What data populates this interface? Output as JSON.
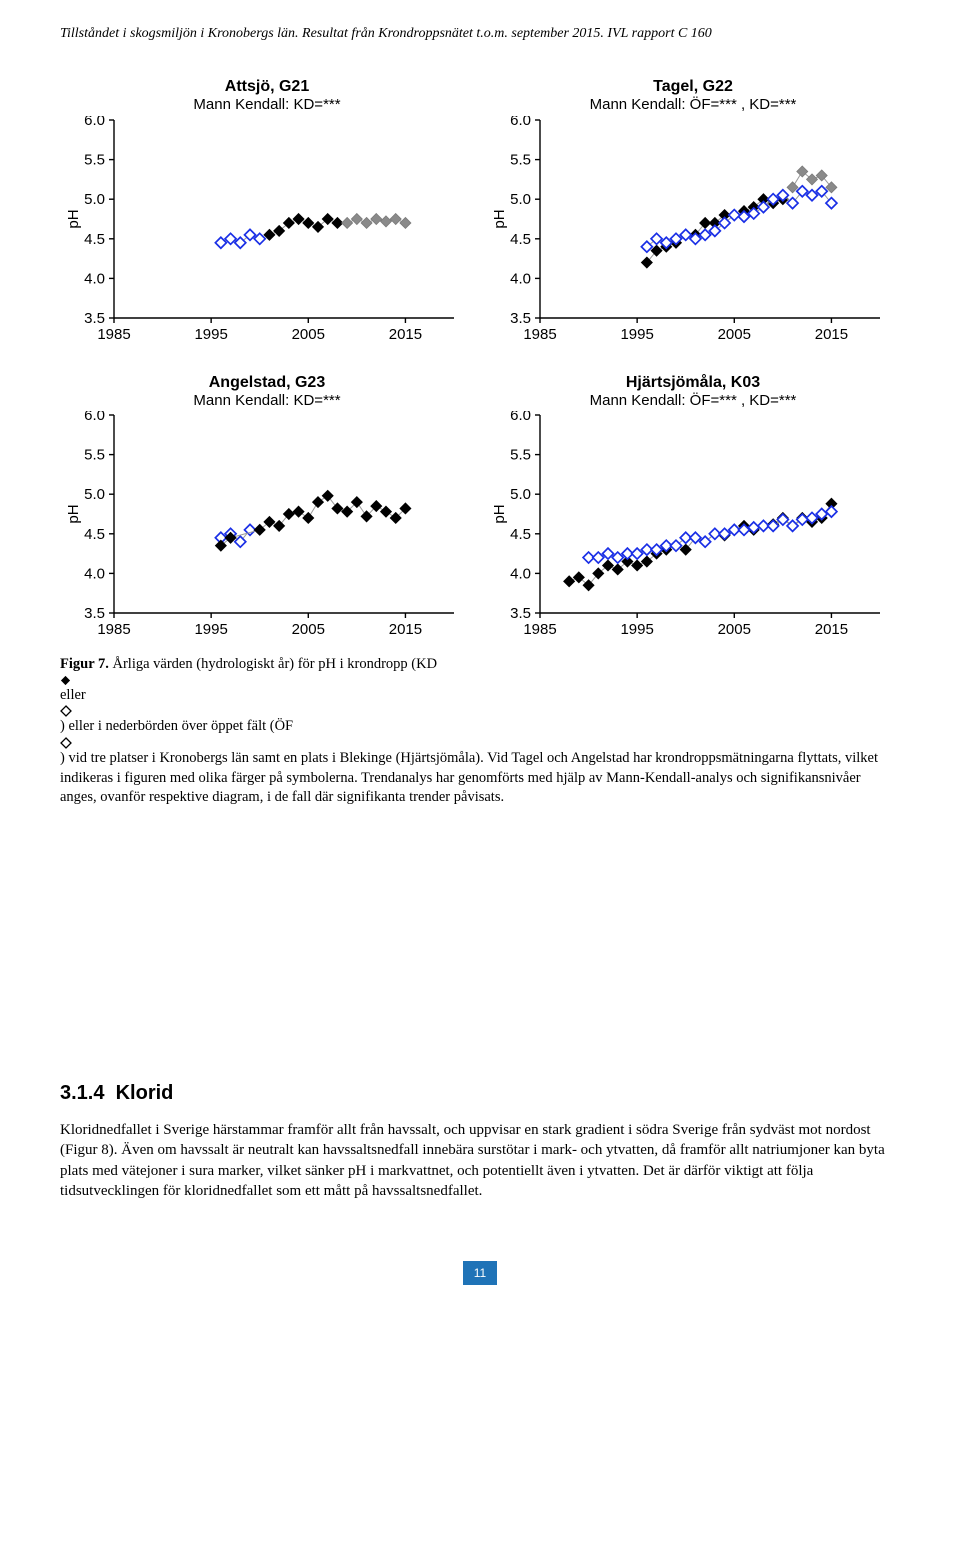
{
  "header": {
    "text": "Tillståndet i skogsmiljön i Kronobergs län. Resultat från Krondroppsnätet t.o.m. september 2015. IVL rapport C 160"
  },
  "charts": [
    {
      "title_main": "Attsjö, G21",
      "title_sub": "Mann Kendall: KD=***",
      "ylabel": "pH",
      "xlim": [
        1985,
        2020
      ],
      "ylim": [
        3.5,
        6.0
      ],
      "xticks": [
        1985,
        1995,
        2005,
        2015
      ],
      "yticks": [
        3.5,
        4.0,
        4.5,
        5.0,
        5.5,
        6.0
      ],
      "series": [
        {
          "shape": "diamond",
          "style": "open",
          "stroke": "#1a2fe6",
          "fill": "none",
          "points": [
            [
              1996,
              4.45
            ],
            [
              1997,
              4.5
            ],
            [
              1998,
              4.45
            ],
            [
              1999,
              4.55
            ],
            [
              2000,
              4.5
            ]
          ]
        },
        {
          "shape": "diamond",
          "style": "solid",
          "stroke": "#000000",
          "fill": "#000000",
          "points": [
            [
              2001,
              4.55
            ],
            [
              2002,
              4.6
            ],
            [
              2003,
              4.7
            ],
            [
              2004,
              4.75
            ],
            [
              2005,
              4.7
            ],
            [
              2006,
              4.65
            ],
            [
              2007,
              4.75
            ],
            [
              2008,
              4.7
            ]
          ]
        },
        {
          "shape": "diamond",
          "style": "solid",
          "stroke": "#7a7a7a",
          "fill": "#8a8a8a",
          "points": [
            [
              2009,
              4.7
            ],
            [
              2010,
              4.75
            ],
            [
              2011,
              4.7
            ],
            [
              2012,
              4.75
            ],
            [
              2013,
              4.72
            ],
            [
              2014,
              4.75
            ],
            [
              2015,
              4.7
            ]
          ]
        }
      ],
      "line_color": "#9a9a9a",
      "line_width": 1,
      "background": "#ffffff",
      "axis_color": "#000000",
      "title_fontsize": 16,
      "tick_fontsize": 15,
      "label_fontsize": 15
    },
    {
      "title_main": "Tagel, G22",
      "title_sub": "Mann Kendall: ÖF=*** , KD=***",
      "ylabel": "pH",
      "xlim": [
        1985,
        2020
      ],
      "ylim": [
        3.5,
        6.0
      ],
      "xticks": [
        1985,
        1995,
        2005,
        2015
      ],
      "yticks": [
        3.5,
        4.0,
        4.5,
        5.0,
        5.5,
        6.0
      ],
      "series": [
        {
          "shape": "diamond",
          "style": "solid",
          "stroke": "#000000",
          "fill": "#000000",
          "points": [
            [
              1996,
              4.2
            ],
            [
              1997,
              4.35
            ],
            [
              1998,
              4.4
            ],
            [
              1999,
              4.45
            ],
            [
              2000,
              4.55
            ],
            [
              2001,
              4.55
            ],
            [
              2002,
              4.7
            ],
            [
              2003,
              4.7
            ],
            [
              2004,
              4.8
            ],
            [
              2005,
              4.8
            ],
            [
              2006,
              4.85
            ],
            [
              2007,
              4.9
            ],
            [
              2008,
              5.0
            ],
            [
              2009,
              4.95
            ],
            [
              2010,
              5.0
            ]
          ]
        },
        {
          "shape": "diamond",
          "style": "solid",
          "stroke": "#7a7a7a",
          "fill": "#8a8a8a",
          "points": [
            [
              2011,
              5.15
            ],
            [
              2012,
              5.35
            ],
            [
              2013,
              5.25
            ],
            [
              2014,
              5.3
            ],
            [
              2015,
              5.15
            ]
          ]
        },
        {
          "shape": "diamond",
          "style": "open",
          "stroke": "#1a2fe6",
          "fill": "none",
          "points": [
            [
              1996,
              4.4
            ],
            [
              1997,
              4.5
            ],
            [
              1998,
              4.45
            ],
            [
              1999,
              4.5
            ],
            [
              2000,
              4.55
            ],
            [
              2001,
              4.5
            ],
            [
              2002,
              4.55
            ],
            [
              2003,
              4.6
            ],
            [
              2004,
              4.7
            ],
            [
              2005,
              4.8
            ],
            [
              2006,
              4.78
            ],
            [
              2007,
              4.82
            ],
            [
              2008,
              4.9
            ],
            [
              2009,
              5.0
            ],
            [
              2010,
              5.05
            ],
            [
              2011,
              4.95
            ],
            [
              2012,
              5.1
            ],
            [
              2013,
              5.05
            ],
            [
              2014,
              5.1
            ],
            [
              2015,
              4.95
            ]
          ]
        }
      ],
      "line_color": "#9a9a9a",
      "line_width": 1,
      "background": "#ffffff",
      "axis_color": "#000000",
      "title_fontsize": 16,
      "tick_fontsize": 15,
      "label_fontsize": 15
    },
    {
      "title_main": "Angelstad, G23",
      "title_sub": "Mann Kendall: KD=***",
      "ylabel": "pH",
      "xlim": [
        1985,
        2020
      ],
      "ylim": [
        3.5,
        6.0
      ],
      "xticks": [
        1985,
        1995,
        2005,
        2015
      ],
      "yticks": [
        3.5,
        4.0,
        4.5,
        5.0,
        5.5,
        6.0
      ],
      "series": [
        {
          "shape": "diamond",
          "style": "open",
          "stroke": "#1a2fe6",
          "fill": "none",
          "points": [
            [
              1996,
              4.45
            ],
            [
              1997,
              4.5
            ],
            [
              1998,
              4.4
            ],
            [
              1999,
              4.55
            ]
          ]
        },
        {
          "shape": "diamond",
          "style": "solid",
          "stroke": "#000000",
          "fill": "#000000",
          "points": [
            [
              1996,
              4.35
            ],
            [
              1997,
              4.45
            ],
            [
              2000,
              4.55
            ],
            [
              2001,
              4.65
            ],
            [
              2002,
              4.6
            ],
            [
              2003,
              4.75
            ],
            [
              2004,
              4.78
            ],
            [
              2005,
              4.7
            ],
            [
              2006,
              4.9
            ],
            [
              2007,
              4.98
            ],
            [
              2008,
              4.82
            ],
            [
              2009,
              4.78
            ],
            [
              2010,
              4.9
            ],
            [
              2011,
              4.72
            ],
            [
              2012,
              4.85
            ],
            [
              2013,
              4.78
            ],
            [
              2014,
              4.7
            ],
            [
              2015,
              4.82
            ]
          ]
        }
      ],
      "line_color": "#9a9a9a",
      "line_width": 1,
      "background": "#ffffff",
      "axis_color": "#000000",
      "title_fontsize": 16,
      "tick_fontsize": 15,
      "label_fontsize": 15
    },
    {
      "title_main": "Hjärtsjömåla, K03",
      "title_sub": "Mann Kendall: ÖF=*** , KD=***",
      "ylabel": "pH",
      "xlim": [
        1985,
        2020
      ],
      "ylim": [
        3.5,
        6.0
      ],
      "xticks": [
        1985,
        1995,
        2005,
        2015
      ],
      "yticks": [
        3.5,
        4.0,
        4.5,
        5.0,
        5.5,
        6.0
      ],
      "series": [
        {
          "shape": "diamond",
          "style": "solid",
          "stroke": "#000000",
          "fill": "#000000",
          "points": [
            [
              1988,
              3.9
            ],
            [
              1989,
              3.95
            ],
            [
              1990,
              3.85
            ],
            [
              1991,
              4.0
            ],
            [
              1992,
              4.1
            ],
            [
              1993,
              4.05
            ],
            [
              1994,
              4.15
            ],
            [
              1995,
              4.1
            ],
            [
              1996,
              4.15
            ],
            [
              1997,
              4.25
            ],
            [
              1998,
              4.3
            ],
            [
              1999,
              4.35
            ],
            [
              2000,
              4.3
            ],
            [
              2001,
              4.45
            ],
            [
              2002,
              4.4
            ],
            [
              2003,
              4.5
            ],
            [
              2004,
              4.48
            ],
            [
              2005,
              4.55
            ],
            [
              2006,
              4.6
            ],
            [
              2007,
              4.55
            ],
            [
              2008,
              4.6
            ],
            [
              2009,
              4.62
            ],
            [
              2010,
              4.7
            ],
            [
              2011,
              4.6
            ],
            [
              2012,
              4.7
            ],
            [
              2013,
              4.65
            ],
            [
              2014,
              4.7
            ],
            [
              2015,
              4.88
            ]
          ]
        },
        {
          "shape": "diamond",
          "style": "open",
          "stroke": "#1a2fe6",
          "fill": "none",
          "points": [
            [
              1990,
              4.2
            ],
            [
              1991,
              4.2
            ],
            [
              1992,
              4.25
            ],
            [
              1993,
              4.2
            ],
            [
              1994,
              4.25
            ],
            [
              1995,
              4.25
            ],
            [
              1996,
              4.3
            ],
            [
              1997,
              4.3
            ],
            [
              1998,
              4.35
            ],
            [
              1999,
              4.35
            ],
            [
              2000,
              4.45
            ],
            [
              2001,
              4.45
            ],
            [
              2002,
              4.4
            ],
            [
              2003,
              4.5
            ],
            [
              2004,
              4.5
            ],
            [
              2005,
              4.55
            ],
            [
              2006,
              4.55
            ],
            [
              2007,
              4.58
            ],
            [
              2008,
              4.6
            ],
            [
              2009,
              4.6
            ],
            [
              2010,
              4.68
            ],
            [
              2011,
              4.6
            ],
            [
              2012,
              4.68
            ],
            [
              2013,
              4.7
            ],
            [
              2014,
              4.75
            ],
            [
              2015,
              4.78
            ]
          ]
        }
      ],
      "line_color": "#9a9a9a",
      "line_width": 1,
      "background": "#ffffff",
      "axis_color": "#000000",
      "title_fontsize": 16,
      "tick_fontsize": 15,
      "label_fontsize": 15
    }
  ],
  "caption": {
    "label": "Figur 7.",
    "pre": " Årliga värden (hydrologiskt år) för pH i krondropp (KD ",
    "mid1": " eller ",
    "mid2": ") eller i nederbörden över öppet fält (ÖF ",
    "post": ") vid tre platser i Kronobergs län samt en plats i Blekinge (Hjärtsjömåla). Vid Tagel och Angelstad har krondroppsmätningarna flyttats, vilket indikeras i figuren med olika färger på symbolerna. Trendanalys har genomförts med hjälp av Mann-Kendall-analys och signifikansnivåer anges, ovanför respektive diagram, i de fall där signifikanta trender påvisats."
  },
  "section": {
    "number": "3.1.4",
    "title": "Klorid"
  },
  "body": {
    "p1": "Kloridnedfallet i Sverige härstammar framför allt från havssalt, och uppvisar en stark gradient i södra Sverige från sydväst mot nordost (Figur 8). Även om havssalt är neutralt kan havssaltsnedfall innebära surstötar i mark- och ytvatten, då framför allt natriumjoner kan byta plats med vätejoner i sura marker, vilket sänker pH i markvattnet, och potentiellt även i ytvatten. Det är därför viktigt att följa tidsutvecklingen för kloridnedfallet som ett mått på havssaltsnedfallet."
  },
  "page_number": "11",
  "page_number_bg": "#1f73b7",
  "inline_diamond": {
    "solid_fill": "#000000",
    "open_stroke": "#000000"
  }
}
